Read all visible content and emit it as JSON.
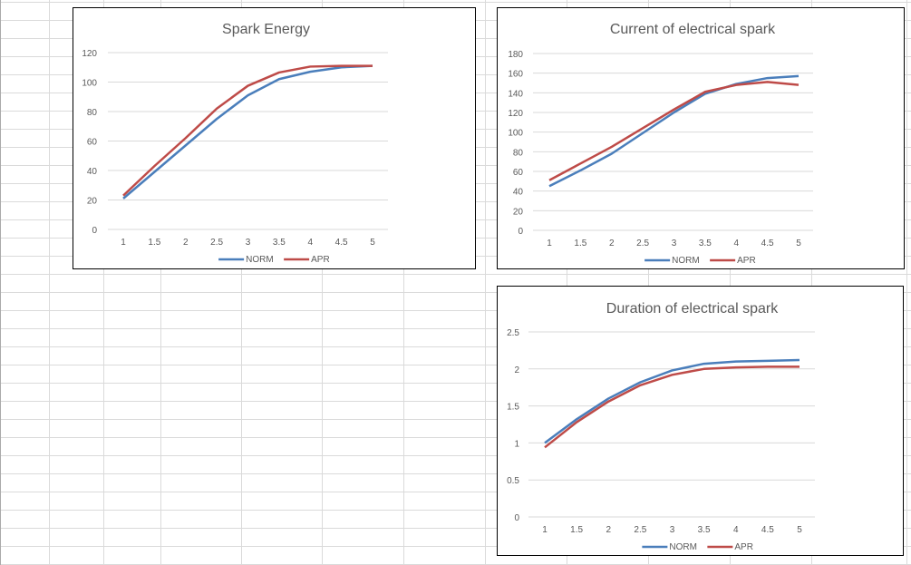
{
  "colors": {
    "norm": "#4a7ebb",
    "apr": "#be4b48",
    "grid": "#d9d9d9",
    "text": "#595959"
  },
  "chart_data": [
    {
      "type": "line",
      "title": "Spark Energy",
      "x": [
        1,
        1.5,
        2,
        2.5,
        3,
        3.5,
        4,
        4.5,
        5
      ],
      "xticks": [
        "1",
        "1.5",
        "2",
        "2.5",
        "3",
        "3.5",
        "4",
        "4.5",
        "5"
      ],
      "ylim": [
        0,
        120
      ],
      "yticks": [
        "0",
        "20",
        "40",
        "60",
        "80",
        "100",
        "120"
      ],
      "ytick_values": [
        0,
        20,
        40,
        60,
        80,
        100,
        120
      ],
      "grid": true,
      "legend": "bottom",
      "series": [
        {
          "name": "NORM",
          "values": [
            21,
            39,
            57,
            75,
            91,
            102,
            107,
            110,
            111
          ]
        },
        {
          "name": "APR",
          "values": [
            23,
            43,
            62,
            82,
            97.5,
            106.5,
            110.5,
            111,
            111
          ]
        }
      ]
    },
    {
      "type": "line",
      "title": "Current of electrical spark",
      "x": [
        1,
        1.5,
        2,
        2.5,
        3,
        3.5,
        4,
        4.5,
        5
      ],
      "xticks": [
        "1",
        "1.5",
        "2",
        "2.5",
        "3",
        "3.5",
        "4",
        "4.5",
        "5"
      ],
      "ylim": [
        0,
        180
      ],
      "yticks": [
        "0",
        "20",
        "40",
        "60",
        "80",
        "100",
        "120",
        "140",
        "160",
        "180"
      ],
      "ytick_values": [
        0,
        20,
        40,
        60,
        80,
        100,
        120,
        140,
        160,
        180
      ],
      "grid": true,
      "legend": "bottom",
      "series": [
        {
          "name": "NORM",
          "values": [
            45,
            61,
            78,
            99,
            120,
            139,
            149,
            155,
            157
          ]
        },
        {
          "name": "APR",
          "values": [
            51,
            68,
            85,
            104,
            123,
            141,
            148,
            151,
            148
          ]
        }
      ]
    },
    {
      "type": "line",
      "title": "Duration of electrical spark",
      "x": [
        1,
        1.5,
        2,
        2.5,
        3,
        3.5,
        4,
        4.5,
        5
      ],
      "xticks": [
        "1",
        "1.5",
        "2",
        "2.5",
        "3",
        "3.5",
        "4",
        "4.5",
        "5"
      ],
      "ylim": [
        0,
        2.5
      ],
      "yticks": [
        "0",
        "0.5",
        "1",
        "1.5",
        "2",
        "2.5"
      ],
      "ytick_values": [
        0,
        0.5,
        1,
        1.5,
        2,
        2.5
      ],
      "grid": true,
      "legend": "bottom",
      "series": [
        {
          "name": "NORM",
          "values": [
            1.0,
            1.32,
            1.6,
            1.82,
            1.98,
            2.07,
            2.1,
            2.11,
            2.12
          ]
        },
        {
          "name": "APR",
          "values": [
            0.94,
            1.28,
            1.56,
            1.78,
            1.92,
            2.0,
            2.02,
            2.03,
            2.03
          ]
        }
      ]
    }
  ]
}
